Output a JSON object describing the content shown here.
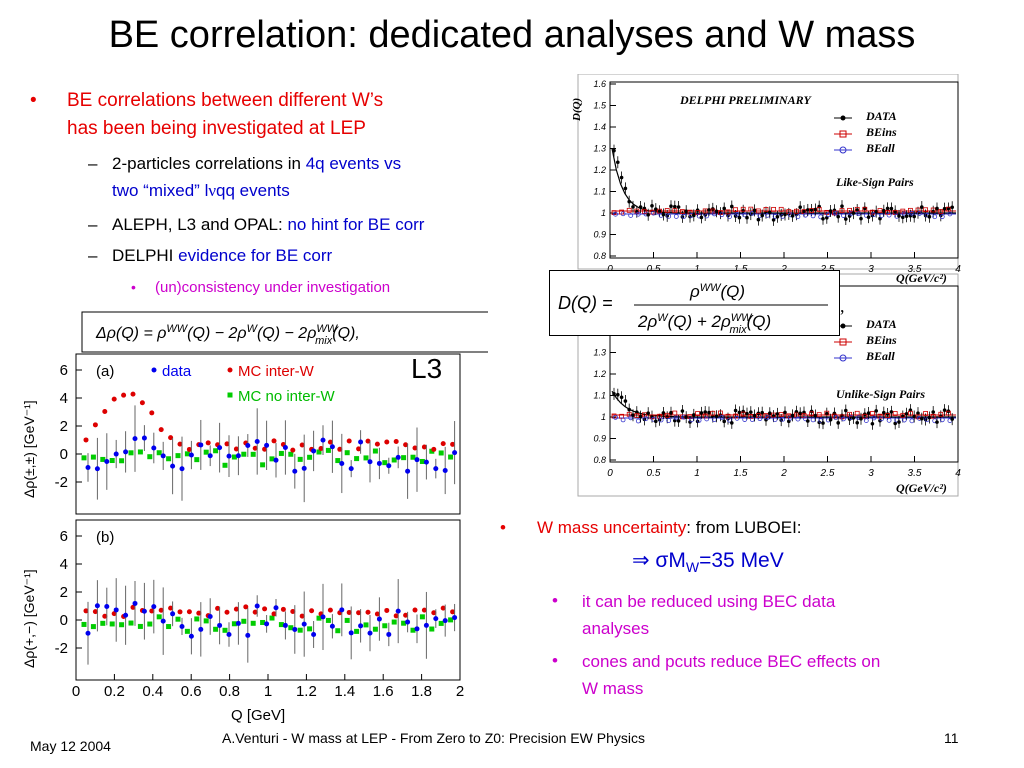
{
  "title": "BE correlation: dedicated analyses and W mass",
  "left_bullets": {
    "main": [
      "BE correlations between different W’s",
      "has been being investigated at LEP"
    ],
    "sub1_a": "2-particles correlations in ",
    "sub1_b": "4q  events vs",
    "sub1_c": "two “mixed” l",
    "sub1_d": "ν",
    "sub1_e": "qq events",
    "sub2_a": "ALEPH, L3 and OPAL: ",
    "sub2_b": "no hint for BE corr",
    "sub3_a": "DELPHI ",
    "sub3_b": "evidence for BE corr",
    "subsub": "(un)consistency under investigation"
  },
  "right_bullets": {
    "main_a": "W mass uncertainty",
    "main_b": ": from LUBOEI:",
    "result": "⇒  σM",
    "result_sub": "W",
    "result_tail": "=35 MeV",
    "sub1": [
      "it can be reduced using BEC data",
      "analyses"
    ],
    "sub2": [
      "cones and pcuts reduce BEC effects on",
      "W mass"
    ]
  },
  "l3_plot": {
    "formula": "Δρ(Q) = ρ^WW(Q) − 2ρ^W(Q) − 2ρ^WW_mix(Q),",
    "label": "L3",
    "panel_a": "(a)",
    "panel_b": "(b)",
    "legend": [
      "data",
      "MC inter-W",
      "MC no inter-W"
    ],
    "ylabel_a": "Δρ(±,±) [GeV⁻¹]",
    "ylabel_b": "Δρ(+,−) [GeV⁻¹]",
    "xlabel": "Q [GeV]",
    "yticks": [
      "6",
      "4",
      "2",
      "0",
      "-2"
    ],
    "xticks": [
      "0",
      "0.2",
      "0.4",
      "0.6",
      "0.8",
      "1",
      "1.2",
      "1.4",
      "1.6",
      "1.8",
      "2"
    ],
    "colors": {
      "data": "#0000ee",
      "inter": "#dd0000",
      "nointer": "#00cc00"
    }
  },
  "delphi_plot": {
    "header": "DELPHI PRELIMINARY",
    "legend": [
      "DATA",
      "BEins",
      "BEall"
    ],
    "top_label": "Like-Sign Pairs",
    "bottom_label": "Unlike-Sign Pairs",
    "ylabel": "D(Q)",
    "xlabel": "Q(GeV/c²)",
    "yticks": [
      "1.6",
      "1.5",
      "1.4",
      "1.3",
      "1.2",
      "1.1",
      "1",
      "0.9",
      "0.8"
    ],
    "xticks": [
      "0",
      "0.5",
      "1",
      "1.5",
      "2",
      "2.5",
      "3",
      "3.5",
      "4"
    ],
    "formula": "D(Q) = ρ^WW(Q) / (2ρ^W(Q) + 2ρ^WW_mix(Q)),"
  },
  "footer": {
    "date": "May 12 2004",
    "center": "A.Venturi - W mass at LEP - From Zero to Z0: Precision EW Physics",
    "page": "11"
  }
}
